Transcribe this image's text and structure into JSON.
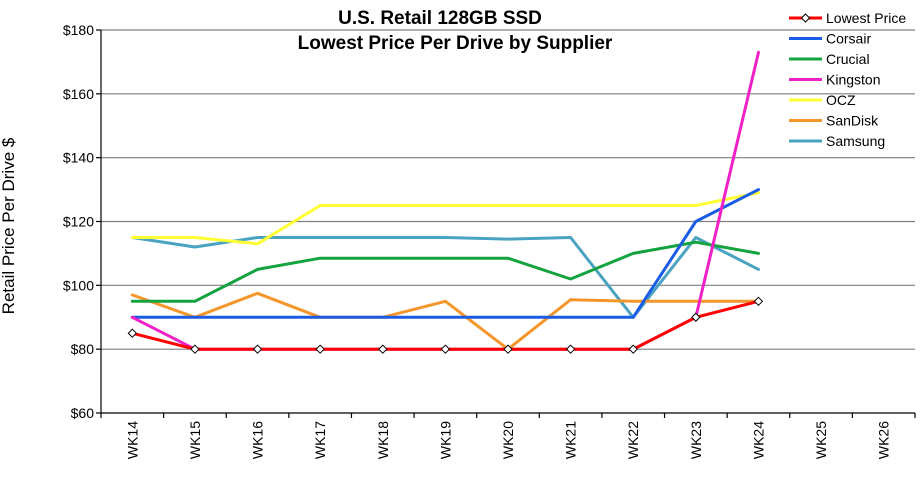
{
  "chart_data": {
    "type": "line",
    "title": [
      "U.S. Retail 128GB SSD",
      "Lowest Price Per Drive by Supplier"
    ],
    "ylabel": "Retail Price Per Drive $",
    "xlabel": "",
    "categories": [
      "WK14",
      "WK15",
      "WK16",
      "WK17",
      "WK18",
      "WK19",
      "WK20",
      "WK21",
      "WK22",
      "WK23",
      "WK24",
      "WK25",
      "WK26"
    ],
    "ylim": [
      60,
      180
    ],
    "yticks": [
      60,
      80,
      100,
      120,
      140,
      160,
      180
    ],
    "ytick_labels": [
      "$60",
      "$80",
      "$100",
      "$120",
      "$140",
      "$160",
      "$180"
    ],
    "grid": true,
    "legend_position": "top-right",
    "series": [
      {
        "name": "Lowest Price",
        "color": "#ff0000",
        "marker": "diamond",
        "values": [
          85,
          80,
          80,
          80,
          80,
          80,
          80,
          80,
          80,
          90,
          95,
          null,
          null
        ]
      },
      {
        "name": "Corsair",
        "color": "#1a5ce6",
        "values": [
          90,
          90,
          90,
          90,
          90,
          90,
          90,
          90,
          90,
          120,
          130,
          null,
          null
        ]
      },
      {
        "name": "Crucial",
        "color": "#13a33f",
        "values": [
          95,
          95,
          105,
          108.5,
          108.5,
          108.5,
          108.5,
          102,
          110,
          113.5,
          110,
          null,
          null
        ]
      },
      {
        "name": "Kingston",
        "color": "#f020c8",
        "values": [
          90,
          80,
          80,
          80,
          80,
          80,
          80,
          80,
          80,
          90,
          173,
          null,
          null
        ]
      },
      {
        "name": "OCZ",
        "color": "#ffff33",
        "values": [
          115,
          115,
          113,
          125,
          125,
          125,
          125,
          125,
          125,
          125,
          129,
          null,
          null
        ]
      },
      {
        "name": "SanDisk",
        "color": "#f5962a",
        "values": [
          97,
          90,
          97.5,
          90,
          90,
          95,
          80,
          95.5,
          95,
          95,
          95,
          null,
          null
        ]
      },
      {
        "name": "Samsung",
        "color": "#4aa3c0",
        "values": [
          115,
          112,
          115,
          115,
          115,
          115,
          114.5,
          115,
          90,
          115,
          105,
          null,
          null
        ]
      }
    ]
  }
}
